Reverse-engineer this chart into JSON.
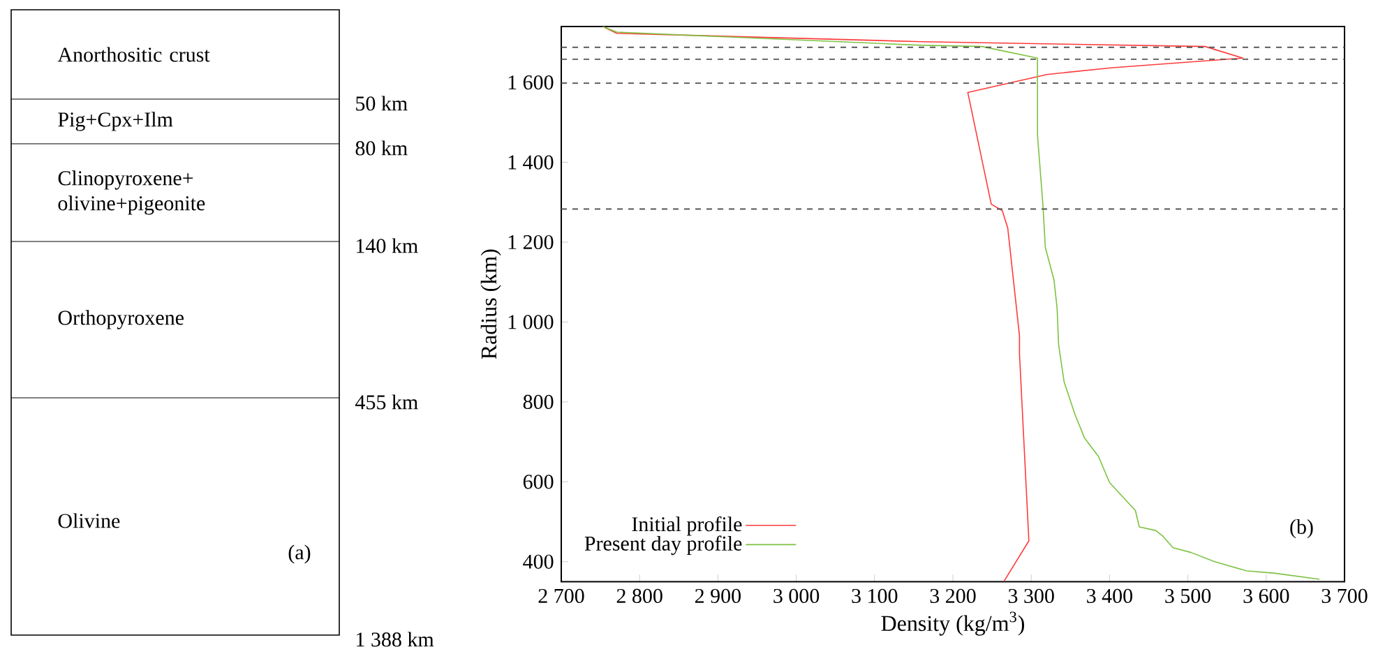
{
  "chart_data": [
    {
      "type": "other",
      "title": "(a)",
      "categories": [
        "Anorthositic crust",
        "Pig+Cpx+Ilm",
        "Clinopyroxene+ olivine+pigeonite",
        "Orthopyroxene",
        "Olivine"
      ],
      "annotations": [
        "50 km",
        "80 km",
        "140 km",
        "455 km",
        "1 388 km"
      ]
    },
    {
      "type": "line",
      "title": "(b)",
      "xlabel": "Density (kg/m$^{3}$)",
      "ylabel": "Radius (km)",
      "xlim": [
        2700,
        3700
      ],
      "ylim": [
        350,
        1740
      ],
      "xticks": [
        {
          "value": 2700,
          "label": "2 700"
        },
        {
          "value": 2800,
          "label": "2 800"
        },
        {
          "value": 2900,
          "label": "2 900"
        },
        {
          "value": 3000,
          "label": "3 000"
        },
        {
          "value": 3100,
          "label": "3 100"
        },
        {
          "value": 3200,
          "label": "3 200"
        },
        {
          "value": 3300,
          "label": "3 300"
        },
        {
          "value": 3400,
          "label": "3 400"
        },
        {
          "value": 3500,
          "label": "3 500"
        },
        {
          "value": 3600,
          "label": "3 600"
        },
        {
          "value": 3700,
          "label": "3 700"
        }
      ],
      "yticks": [
        400,
        600,
        800,
        {
          "value": 1000,
          "label": "1 000"
        },
        {
          "value": 1200,
          "label": "1 200"
        },
        {
          "value": 1400,
          "label": "1 400"
        },
        {
          "value": 1600,
          "label": "1 600"
        }
      ],
      "legend": "bottom left",
      "marker": "none",
      "line_style": "solid",
      "ref_lines": [
        {
          "axis": "y",
          "value": 1688,
          "color": "#555555",
          "line_style": "dashed"
        },
        {
          "axis": "y",
          "value": 1658,
          "color": "#555555",
          "line_style": "dashed"
        },
        {
          "axis": "y",
          "value": 1598,
          "color": "#555555",
          "line_style": "dashed"
        },
        {
          "axis": "y",
          "value": 1283,
          "color": "#555555",
          "line_style": "dashed"
        }
      ],
      "series": [
        {
          "name": "Initial profile",
          "color": "#ff3b3b",
          "x": [
            2753,
            2771,
            3160,
            3522,
            3570,
            3404,
            3320,
            3219,
            3249,
            3263,
            3270,
            3285,
            3285,
            3297,
            3265
          ],
          "values": [
            1740,
            1723,
            1702,
            1690,
            1661,
            1637,
            1620,
            1575,
            1295,
            1279,
            1236,
            966,
            921,
            452,
            350
          ]
        },
        {
          "name": "Present day profile",
          "color": "#7dc242",
          "x": [
            2753,
            2771,
            3160,
            3237,
            3308,
            3308,
            3315,
            3318,
            3329,
            3333,
            3335,
            3342,
            3356,
            3368,
            3386,
            3400,
            3433,
            3438,
            3459,
            3468,
            3481,
            3504,
            3534,
            3575,
            3611,
            3668
          ],
          "values": [
            1740,
            1726,
            1693,
            1690,
            1661,
            1468,
            1292,
            1187,
            1106,
            1036,
            943,
            850,
            768,
            710,
            663,
            598,
            528,
            487,
            478,
            464,
            435,
            423,
            400,
            377,
            371,
            356
          ]
        }
      ]
    }
  ]
}
